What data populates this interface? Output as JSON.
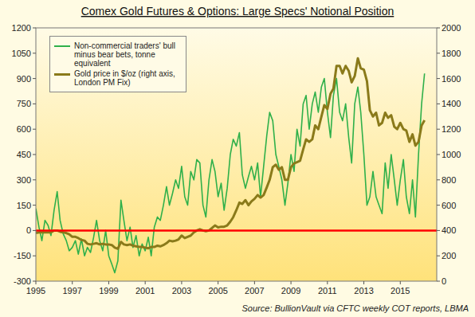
{
  "chart_data": {
    "type": "line",
    "title": "Comex Gold Futures & Options: Large Specs' Notional Position",
    "source": "Source: BullionVault via CFTC weekly COT reports, LBMA",
    "legend": "upper left",
    "x": [
      1995,
      1995.17,
      1995.33,
      1995.5,
      1995.67,
      1995.83,
      1996,
      1996.17,
      1996.33,
      1996.5,
      1996.67,
      1996.83,
      1997,
      1997.17,
      1997.33,
      1997.5,
      1997.67,
      1997.83,
      1998,
      1998.17,
      1998.33,
      1998.5,
      1998.67,
      1998.83,
      1999,
      1999.17,
      1999.33,
      1999.5,
      1999.67,
      1999.83,
      2000,
      2000.17,
      2000.33,
      2000.5,
      2000.67,
      2000.83,
      2001,
      2001.17,
      2001.33,
      2001.5,
      2001.67,
      2001.83,
      2002,
      2002.17,
      2002.33,
      2002.5,
      2002.67,
      2002.83,
      2003,
      2003.17,
      2003.33,
      2003.5,
      2003.67,
      2003.83,
      2004,
      2004.17,
      2004.33,
      2004.5,
      2004.67,
      2004.83,
      2005,
      2005.17,
      2005.33,
      2005.5,
      2005.67,
      2005.83,
      2006,
      2006.17,
      2006.33,
      2006.5,
      2006.67,
      2006.83,
      2007,
      2007.17,
      2007.33,
      2007.5,
      2007.67,
      2007.83,
      2008,
      2008.17,
      2008.33,
      2008.5,
      2008.67,
      2008.83,
      2009,
      2009.17,
      2009.33,
      2009.5,
      2009.67,
      2009.83,
      2010,
      2010.17,
      2010.33,
      2010.5,
      2010.67,
      2010.83,
      2011,
      2011.17,
      2011.33,
      2011.5,
      2011.67,
      2011.83,
      2012,
      2012.17,
      2012.33,
      2012.5,
      2012.67,
      2012.83,
      2013,
      2013.17,
      2013.33,
      2013.5,
      2013.67,
      2013.83,
      2014,
      2014.17,
      2014.33,
      2014.5,
      2014.67,
      2014.83,
      2015,
      2015.17,
      2015.33,
      2015.5,
      2015.67,
      2015.83,
      2016,
      2016.17,
      2016.33
    ],
    "series": [
      {
        "name": "Non-commercial traders' bull minus bear bets, tonne equivalent",
        "color": "#2fb04a",
        "axis": "y",
        "values": [
          130,
          20,
          -60,
          60,
          30,
          -30,
          120,
          230,
          60,
          -20,
          -60,
          -120,
          -100,
          -60,
          -140,
          -50,
          -150,
          -100,
          -130,
          -40,
          60,
          -60,
          -120,
          0,
          -150,
          -200,
          -250,
          -180,
          180,
          60,
          -60,
          20,
          -100,
          -30,
          -150,
          -80,
          -120,
          -40,
          -150,
          20,
          80,
          60,
          150,
          260,
          150,
          220,
          300,
          250,
          380,
          200,
          150,
          350,
          300,
          420,
          400,
          150,
          80,
          300,
          420,
          350,
          200,
          280,
          120,
          250,
          450,
          540,
          500,
          580,
          330,
          250,
          320,
          380,
          300,
          400,
          200,
          380,
          560,
          700,
          650,
          450,
          380,
          300,
          150,
          280,
          450,
          350,
          600,
          500,
          750,
          800,
          600,
          750,
          820,
          700,
          850,
          900,
          700,
          550,
          800,
          900,
          700,
          650,
          750,
          550,
          400,
          750,
          850,
          700,
          450,
          150,
          200,
          350,
          200,
          150,
          100,
          400,
          250,
          450,
          300,
          150,
          300,
          420,
          200,
          100,
          300,
          80,
          450,
          750,
          930
        ]
      },
      {
        "name": "Gold price in $/oz (right axis, London PM Fix)",
        "color": "#8a7a1a",
        "axis": "y2",
        "values": [
          380,
          385,
          385,
          385,
          385,
          385,
          400,
          400,
          390,
          385,
          380,
          370,
          350,
          350,
          340,
          325,
          320,
          295,
          290,
          295,
          300,
          290,
          295,
          290,
          290,
          285,
          265,
          255,
          310,
          290,
          285,
          290,
          280,
          275,
          270,
          270,
          265,
          260,
          270,
          270,
          280,
          275,
          285,
          300,
          320,
          315,
          320,
          330,
          360,
          340,
          350,
          360,
          385,
          400,
          410,
          400,
          395,
          400,
          420,
          440,
          425,
          430,
          430,
          440,
          470,
          505,
          560,
          620,
          610,
          640,
          600,
          630,
          650,
          680,
          660,
          680,
          740,
          800,
          900,
          920,
          880,
          900,
          800,
          800,
          900,
          930,
          940,
          950,
          1040,
          1120,
          1100,
          1120,
          1230,
          1200,
          1300,
          1390,
          1360,
          1480,
          1520,
          1700,
          1700,
          1640,
          1700,
          1660,
          1570,
          1620,
          1760,
          1680,
          1670,
          1580,
          1350,
          1300,
          1330,
          1230,
          1250,
          1330,
          1290,
          1310,
          1220,
          1200,
          1250,
          1200,
          1190,
          1100,
          1160,
          1070,
          1100,
          1230,
          1270
        ]
      }
    ],
    "reference_lines": [
      {
        "value": 0,
        "color": "#ff0000"
      }
    ],
    "xlim": [
      1995,
      2017
    ],
    "xticks": [
      1995,
      1997,
      1999,
      2001,
      2003,
      2005,
      2007,
      2009,
      2011,
      2013,
      2015
    ],
    "ylim": [
      -300,
      1200
    ],
    "yticks": [
      -300,
      -150,
      0,
      150,
      300,
      450,
      600,
      750,
      900,
      1050,
      1200
    ],
    "y2lim": [
      0,
      2000
    ],
    "y2ticks": [
      0,
      200,
      400,
      600,
      800,
      1000,
      1200,
      1400,
      1600,
      1800,
      2000
    ]
  }
}
